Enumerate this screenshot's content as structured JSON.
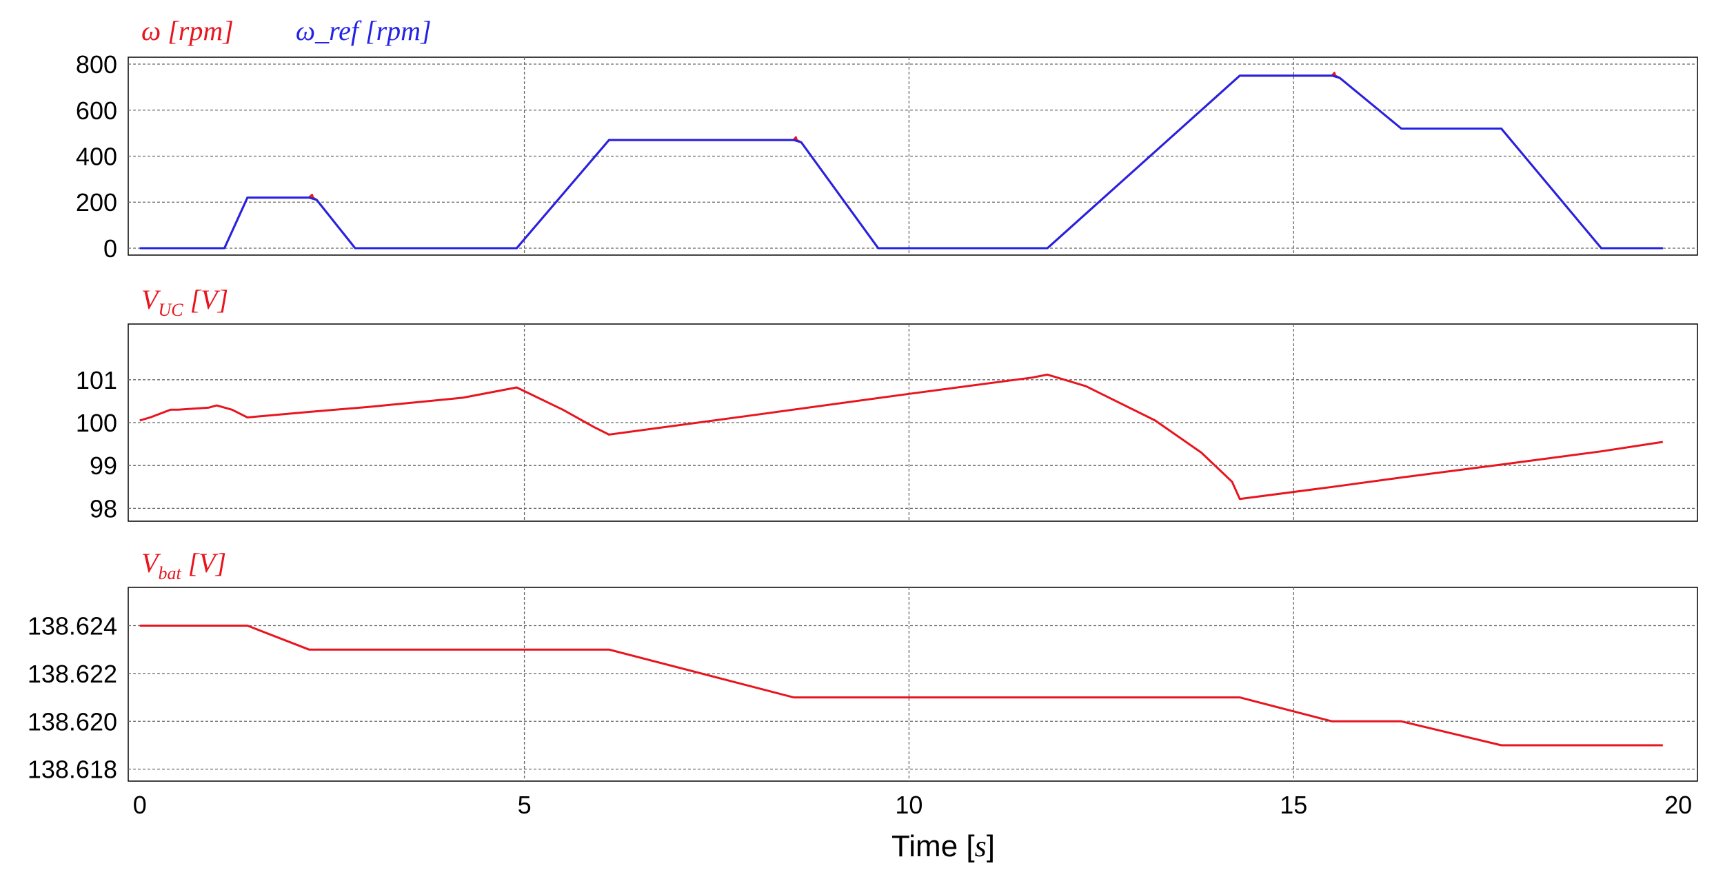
{
  "colors": {
    "red": "#e8141e",
    "blue": "#2323e6",
    "grid": "#666666"
  },
  "xaxis": {
    "label_main": "Time ",
    "label_open": "[",
    "label_unit": "s",
    "label_close": "]",
    "ticks": [
      0,
      5,
      10,
      15,
      20
    ],
    "range": [
      -0.15,
      20.25
    ]
  },
  "chart_data": [
    {
      "type": "line",
      "title": {
        "series1": "ω [rpm]",
        "series2": "ω_ref [rpm]"
      },
      "ylim": [
        -30,
        830
      ],
      "yticks": [
        0,
        200,
        400,
        600,
        800
      ],
      "ytick_labels": [
        "0",
        "200",
        "400",
        "600",
        "800"
      ],
      "grid": true,
      "series": [
        {
          "name": "ω [rpm]",
          "color": "#e8141e",
          "x": [
            0,
            1.1,
            1.4,
            2.2,
            2.24,
            2.25,
            2.3,
            2.8,
            4.9,
            6.1,
            8.5,
            8.53,
            8.54,
            8.6,
            9.6,
            11.8,
            14.3,
            15.5,
            15.53,
            15.54,
            15.6,
            16.4,
            17.7,
            19.0,
            19.8
          ],
          "y": [
            0,
            0,
            220,
            220,
            232,
            220,
            210,
            0,
            0,
            470,
            470,
            482,
            470,
            460,
            0,
            0,
            750,
            750,
            762,
            750,
            740,
            520,
            520,
            0,
            0
          ]
        },
        {
          "name": "ω_ref [rpm]",
          "color": "#2323e6",
          "x": [
            0,
            1.1,
            1.4,
            2.2,
            2.3,
            2.8,
            4.9,
            6.1,
            8.5,
            8.6,
            9.6,
            11.8,
            14.3,
            15.5,
            15.6,
            16.4,
            17.7,
            19.0,
            19.8
          ],
          "y": [
            0,
            0,
            220,
            220,
            210,
            0,
            0,
            470,
            470,
            460,
            0,
            0,
            750,
            750,
            740,
            520,
            520,
            0,
            0
          ]
        }
      ]
    },
    {
      "type": "line",
      "title": {
        "main": "V",
        "sub": "UC",
        "unit": " [V]"
      },
      "ylim": [
        97.7,
        102.3
      ],
      "yticks": [
        98,
        99,
        100,
        101
      ],
      "ytick_labels": [
        "98",
        "99",
        "100",
        "101"
      ],
      "grid": true,
      "series": [
        {
          "name": "V_UC [V]",
          "color": "#e8141e",
          "x": [
            0,
            0.15,
            0.4,
            0.5,
            0.9,
            1.0,
            1.2,
            1.4,
            2.2,
            3.0,
            4.2,
            4.9,
            5.5,
            5.9,
            6.1,
            8.0,
            10.0,
            11.6,
            11.8,
            12.3,
            13.2,
            13.8,
            14.2,
            14.3,
            15.5,
            16.4,
            17.7,
            19.0,
            19.8
          ],
          "y": [
            100.05,
            100.13,
            100.3,
            100.3,
            100.35,
            100.4,
            100.3,
            100.12,
            100.25,
            100.37,
            100.58,
            100.82,
            100.3,
            99.9,
            99.72,
            100.18,
            100.67,
            101.05,
            101.12,
            100.85,
            100.05,
            99.3,
            98.62,
            98.22,
            98.5,
            98.72,
            99.02,
            99.33,
            99.55
          ]
        }
      ]
    },
    {
      "type": "line",
      "title": {
        "main": "V",
        "sub": "bat",
        "unit": " [V]"
      },
      "ylim": [
        138.6175,
        138.6256
      ],
      "yticks": [
        138.618,
        138.62,
        138.622,
        138.624
      ],
      "ytick_labels": [
        "138.618",
        "138.620",
        "138.622",
        "138.624"
      ],
      "grid": true,
      "series": [
        {
          "name": "V_bat [V]",
          "color": "#e8141e",
          "x": [
            0,
            1.4,
            2.2,
            6.1,
            8.5,
            14.3,
            15.5,
            16.4,
            17.7,
            19.8
          ],
          "y": [
            138.624,
            138.624,
            138.623,
            138.623,
            138.621,
            138.621,
            138.62,
            138.62,
            138.619,
            138.619
          ]
        }
      ]
    }
  ]
}
